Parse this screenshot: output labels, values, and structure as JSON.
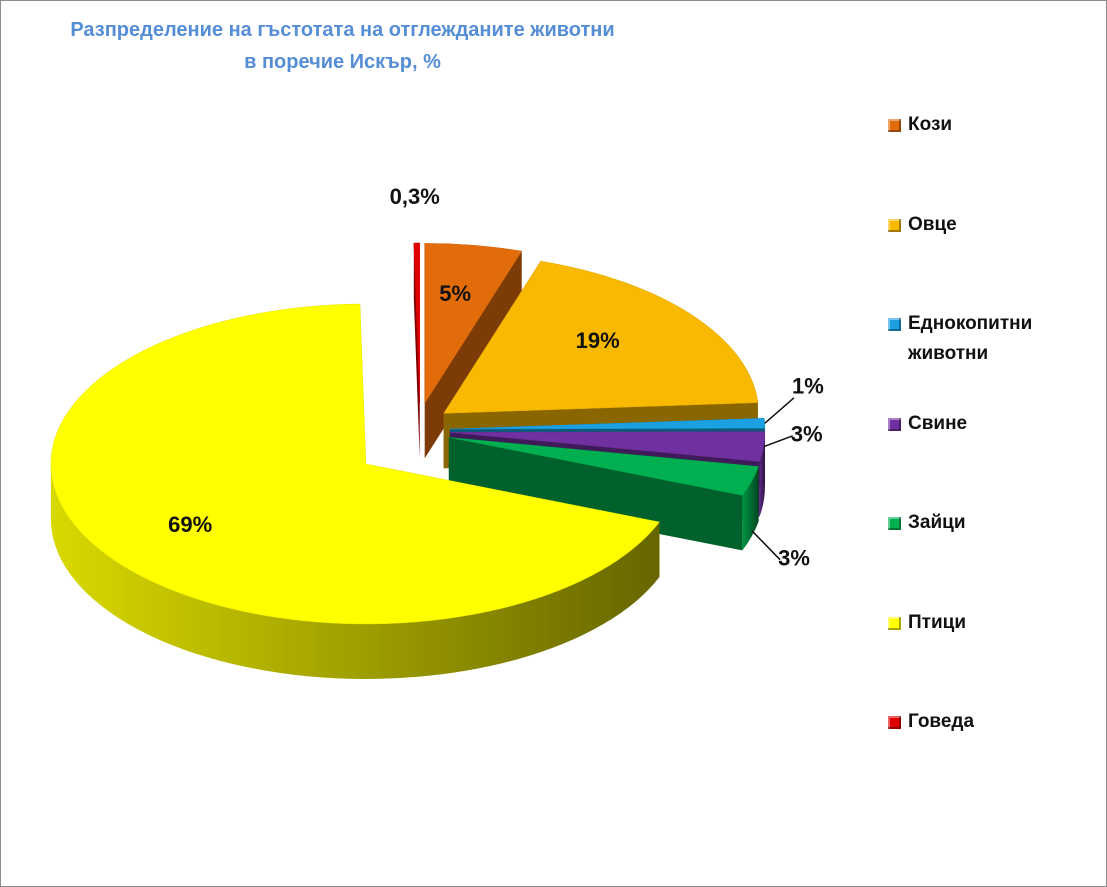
{
  "chart_data": {
    "type": "pie",
    "title": [
      "Разпределение на гъстотата на отглежданите животни",
      "в поречие Искър, %"
    ],
    "categories": [
      "Кози",
      "Овце",
      "Еднокопитни животни",
      "Свине",
      "Зайци",
      "Птици",
      "Говеда"
    ],
    "values": [
      5,
      19,
      1,
      3,
      3,
      69,
      0.3
    ],
    "value_labels": [
      "5%",
      "19%",
      "1%",
      "3%",
      "3%",
      "69%",
      "0,3%"
    ],
    "colors": [
      "#e36c0a",
      "#f9b900",
      "#1ba1e2",
      "#7030a0",
      "#00b050",
      "#ffff00",
      "#e00000"
    ],
    "legend": "right"
  }
}
